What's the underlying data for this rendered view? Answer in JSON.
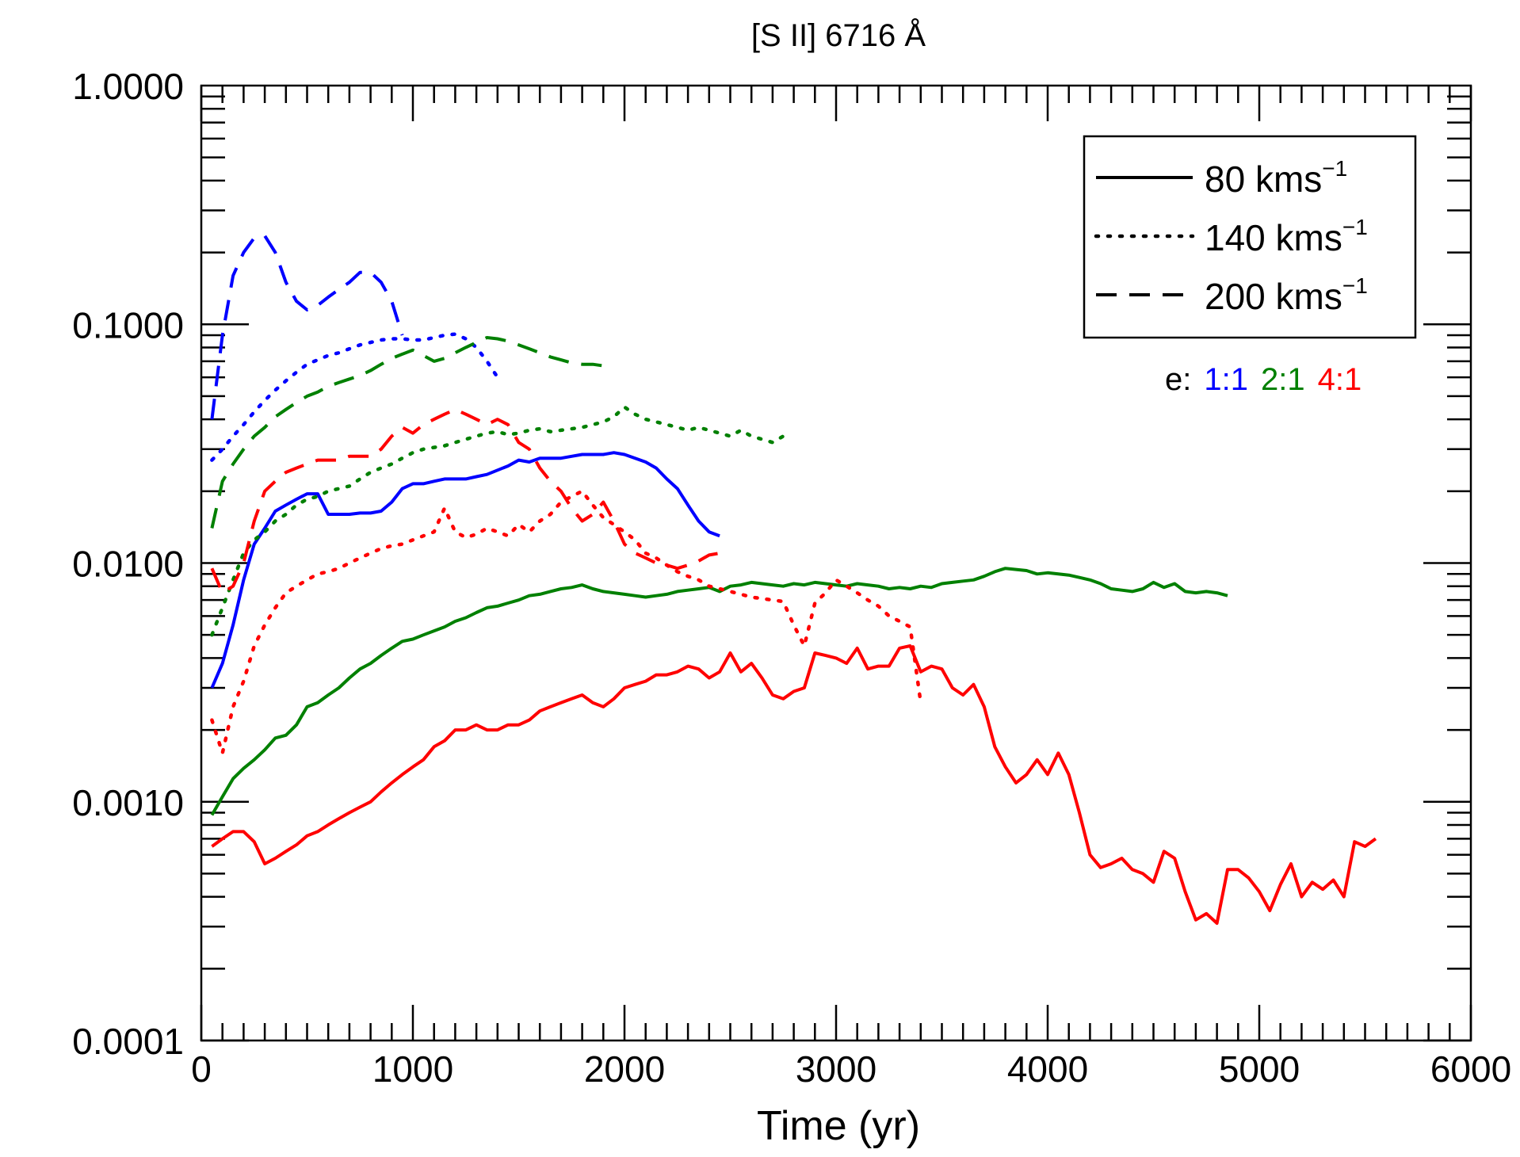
{
  "chart_data": {
    "type": "line",
    "title": "[S II] 6716 Å",
    "xlabel": "Time (yr)",
    "ylabel": "",
    "xlim": [
      0,
      6000
    ],
    "ylim": [
      0.0001,
      1.0
    ],
    "yscale": "log",
    "xticks": [
      "0",
      "1000",
      "2000",
      "3000",
      "4000",
      "5000",
      "6000"
    ],
    "yticks": [
      "0.0001",
      "0.0010",
      "0.0100",
      "0.1000",
      "1.0000"
    ],
    "legend_position": "top-right",
    "legend": [
      {
        "label": "80 kms",
        "sup": "−1",
        "dash": "solid"
      },
      {
        "label": "140 kms",
        "sup": "−1",
        "dash": "dotted"
      },
      {
        "label": "200 kms",
        "sup": "−1",
        "dash": "dashed"
      }
    ],
    "ratio_legend": {
      "prefix": "e:",
      "items": [
        {
          "label": "1:1",
          "color": "#0000ff"
        },
        {
          "label": "2:1",
          "color": "#008000"
        },
        {
          "label": "4:1",
          "color": "#ff0000"
        }
      ]
    },
    "series": [
      {
        "velocity": "80",
        "ratio": "1:1",
        "color": "#0000ff",
        "dash": "solid",
        "x": [
          50,
          100,
          150,
          200,
          250,
          300,
          350,
          400,
          450,
          500,
          550,
          600,
          650,
          700,
          750,
          800,
          850,
          900,
          950,
          1000,
          1050,
          1100,
          1150,
          1200,
          1250,
          1300,
          1350,
          1400,
          1450,
          1500,
          1550,
          1600,
          1650,
          1700,
          1750,
          1800,
          1850,
          1900,
          1950,
          2000,
          2050,
          2100,
          2150,
          2200,
          2250,
          2300,
          2350,
          2400,
          2450
        ],
        "y": [
          0.003,
          0.0038,
          0.0055,
          0.0085,
          0.012,
          0.014,
          0.0165,
          0.0175,
          0.0185,
          0.0195,
          0.0195,
          0.016,
          0.016,
          0.016,
          0.0162,
          0.0162,
          0.0165,
          0.018,
          0.0205,
          0.0215,
          0.0215,
          0.022,
          0.0225,
          0.0225,
          0.0225,
          0.023,
          0.0235,
          0.0245,
          0.0255,
          0.027,
          0.0265,
          0.0275,
          0.0275,
          0.0275,
          0.028,
          0.0285,
          0.0285,
          0.0285,
          0.029,
          0.0285,
          0.0275,
          0.0265,
          0.025,
          0.0225,
          0.0205,
          0.0175,
          0.015,
          0.0135,
          0.013
        ]
      },
      {
        "velocity": "80",
        "ratio": "2:1",
        "color": "#008000",
        "dash": "solid",
        "x": [
          50,
          100,
          150,
          200,
          250,
          300,
          350,
          400,
          450,
          500,
          550,
          600,
          650,
          700,
          750,
          800,
          850,
          900,
          950,
          1000,
          1050,
          1100,
          1150,
          1200,
          1250,
          1300,
          1350,
          1400,
          1450,
          1500,
          1550,
          1600,
          1650,
          1700,
          1750,
          1800,
          1850,
          1900,
          1950,
          2000,
          2050,
          2100,
          2150,
          2200,
          2250,
          2300,
          2350,
          2400,
          2450,
          2500,
          2550,
          2600,
          2650,
          2700,
          2750,
          2800,
          2850,
          2900,
          2950,
          3000,
          3050,
          3100,
          3150,
          3200,
          3250,
          3300,
          3350,
          3400,
          3450,
          3500,
          3550,
          3600,
          3650,
          3700,
          3750,
          3800,
          3850,
          3900,
          3950,
          4000,
          4050,
          4100,
          4150,
          4200,
          4250,
          4300,
          4350,
          4400,
          4450,
          4500,
          4550,
          4600,
          4650,
          4700,
          4750,
          4800,
          4850
        ],
        "y": [
          0.00088,
          0.00105,
          0.00125,
          0.00138,
          0.0015,
          0.00165,
          0.00185,
          0.0019,
          0.0021,
          0.0025,
          0.0026,
          0.0028,
          0.003,
          0.0033,
          0.0036,
          0.0038,
          0.0041,
          0.0044,
          0.0047,
          0.0048,
          0.005,
          0.0052,
          0.0054,
          0.0057,
          0.0059,
          0.0062,
          0.0065,
          0.0066,
          0.0068,
          0.007,
          0.0073,
          0.0074,
          0.0076,
          0.0078,
          0.0079,
          0.0081,
          0.0078,
          0.0076,
          0.0075,
          0.0074,
          0.0073,
          0.0072,
          0.0073,
          0.0074,
          0.0076,
          0.0077,
          0.0078,
          0.0079,
          0.0076,
          0.008,
          0.0081,
          0.0083,
          0.0082,
          0.0081,
          0.008,
          0.0082,
          0.0081,
          0.0083,
          0.0082,
          0.0081,
          0.008,
          0.0082,
          0.0081,
          0.008,
          0.0078,
          0.0079,
          0.0078,
          0.008,
          0.0079,
          0.0082,
          0.0083,
          0.0084,
          0.0085,
          0.0088,
          0.0092,
          0.0095,
          0.0094,
          0.0093,
          0.009,
          0.0091,
          0.009,
          0.0089,
          0.0087,
          0.0085,
          0.0082,
          0.0078,
          0.0077,
          0.0076,
          0.0078,
          0.0083,
          0.0079,
          0.0082,
          0.0076,
          0.0075,
          0.0076,
          0.0075,
          0.0073
        ]
      },
      {
        "velocity": "80",
        "ratio": "4:1",
        "color": "#ff0000",
        "dash": "solid",
        "x": [
          50,
          100,
          150,
          200,
          250,
          300,
          350,
          400,
          450,
          500,
          550,
          600,
          650,
          700,
          750,
          800,
          850,
          900,
          950,
          1000,
          1050,
          1100,
          1150,
          1200,
          1250,
          1300,
          1350,
          1400,
          1450,
          1500,
          1550,
          1600,
          1650,
          1700,
          1750,
          1800,
          1850,
          1900,
          1950,
          2000,
          2050,
          2100,
          2150,
          2200,
          2250,
          2300,
          2350,
          2400,
          2450,
          2500,
          2550,
          2600,
          2650,
          2700,
          2750,
          2800,
          2850,
          2900,
          2950,
          3000,
          3050,
          3100,
          3150,
          3200,
          3250,
          3300,
          3350,
          3400,
          3450,
          3500,
          3550,
          3600,
          3650,
          3700,
          3750,
          3800,
          3850,
          3900,
          3950,
          4000,
          4050,
          4100,
          4150,
          4200,
          4250,
          4300,
          4350,
          4400,
          4450,
          4500,
          4550,
          4600,
          4650,
          4700,
          4750,
          4800,
          4850,
          4900,
          4950,
          5000,
          5050,
          5100,
          5150,
          5200,
          5250,
          5300,
          5350,
          5400,
          5450,
          5500,
          5550
        ],
        "y": [
          0.00065,
          0.0007,
          0.00075,
          0.00075,
          0.00068,
          0.00055,
          0.00058,
          0.00062,
          0.00066,
          0.00072,
          0.00075,
          0.0008,
          0.00085,
          0.0009,
          0.00095,
          0.001,
          0.0011,
          0.0012,
          0.0013,
          0.0014,
          0.0015,
          0.0017,
          0.0018,
          0.002,
          0.002,
          0.0021,
          0.002,
          0.002,
          0.0021,
          0.0021,
          0.0022,
          0.0024,
          0.0025,
          0.0026,
          0.0027,
          0.0028,
          0.0026,
          0.0025,
          0.0027,
          0.003,
          0.0031,
          0.0032,
          0.0034,
          0.0034,
          0.0035,
          0.0037,
          0.0036,
          0.0033,
          0.0035,
          0.0042,
          0.0035,
          0.0038,
          0.0033,
          0.0028,
          0.0027,
          0.0029,
          0.003,
          0.0042,
          0.0041,
          0.004,
          0.0038,
          0.0044,
          0.0036,
          0.0037,
          0.0037,
          0.0044,
          0.0045,
          0.0035,
          0.0037,
          0.0036,
          0.003,
          0.0028,
          0.0031,
          0.0025,
          0.0017,
          0.0014,
          0.0012,
          0.0013,
          0.0015,
          0.0013,
          0.0016,
          0.0013,
          0.0009,
          0.0006,
          0.00053,
          0.00055,
          0.00058,
          0.00052,
          0.0005,
          0.00046,
          0.00062,
          0.00058,
          0.00042,
          0.00032,
          0.00034,
          0.00031,
          0.00052,
          0.00052,
          0.00048,
          0.00042,
          0.00035,
          0.00045,
          0.00055,
          0.0004,
          0.00046,
          0.00043,
          0.00047,
          0.0004,
          0.00068,
          0.00065,
          0.0007
        ]
      },
      {
        "velocity": "140",
        "ratio": "1:1",
        "color": "#0000ff",
        "dash": "dotted",
        "x": [
          50,
          100,
          150,
          200,
          250,
          300,
          350,
          400,
          450,
          500,
          550,
          600,
          650,
          700,
          750,
          800,
          850,
          900,
          950,
          1000,
          1050,
          1100,
          1150,
          1200,
          1250,
          1300,
          1350,
          1400
        ],
        "y": [
          0.027,
          0.03,
          0.034,
          0.038,
          0.043,
          0.048,
          0.053,
          0.058,
          0.063,
          0.068,
          0.071,
          0.074,
          0.076,
          0.079,
          0.082,
          0.084,
          0.086,
          0.087,
          0.087,
          0.086,
          0.086,
          0.088,
          0.09,
          0.091,
          0.087,
          0.08,
          0.07,
          0.06
        ]
      },
      {
        "velocity": "140",
        "ratio": "2:1",
        "color": "#008000",
        "dash": "dotted",
        "x": [
          50,
          100,
          150,
          200,
          250,
          300,
          350,
          400,
          450,
          500,
          550,
          600,
          650,
          700,
          750,
          800,
          850,
          900,
          950,
          1000,
          1050,
          1100,
          1150,
          1200,
          1250,
          1300,
          1350,
          1400,
          1450,
          1500,
          1550,
          1600,
          1650,
          1700,
          1750,
          1800,
          1850,
          1900,
          1950,
          2000,
          2050,
          2100,
          2150,
          2200,
          2250,
          2300,
          2350,
          2400,
          2450,
          2500,
          2550,
          2600,
          2650,
          2700,
          2750
        ],
        "y": [
          0.005,
          0.0065,
          0.0085,
          0.011,
          0.0125,
          0.0135,
          0.015,
          0.016,
          0.0175,
          0.0185,
          0.019,
          0.02,
          0.0205,
          0.021,
          0.0225,
          0.024,
          0.025,
          0.026,
          0.0275,
          0.029,
          0.03,
          0.0305,
          0.031,
          0.032,
          0.033,
          0.034,
          0.035,
          0.0355,
          0.0345,
          0.035,
          0.036,
          0.0365,
          0.0355,
          0.036,
          0.0365,
          0.037,
          0.038,
          0.039,
          0.041,
          0.045,
          0.042,
          0.04,
          0.039,
          0.038,
          0.037,
          0.036,
          0.037,
          0.036,
          0.035,
          0.034,
          0.036,
          0.034,
          0.033,
          0.032,
          0.034
        ]
      },
      {
        "velocity": "140",
        "ratio": "4:1",
        "color": "#ff0000",
        "dash": "dotted",
        "x": [
          50,
          100,
          150,
          200,
          250,
          300,
          350,
          400,
          450,
          500,
          550,
          600,
          650,
          700,
          750,
          800,
          850,
          900,
          950,
          1000,
          1050,
          1100,
          1150,
          1200,
          1250,
          1300,
          1350,
          1400,
          1450,
          1500,
          1550,
          1600,
          1650,
          1700,
          1750,
          1800,
          1850,
          1900,
          1950,
          2000,
          2050,
          2100,
          2150,
          2200,
          2250,
          2300,
          2350,
          2400,
          2450,
          2500,
          2550,
          2600,
          2650,
          2700,
          2750,
          2800,
          2850,
          2900,
          2950,
          3000,
          3050,
          3100,
          3150,
          3200,
          3250,
          3300,
          3350,
          3400
        ],
        "y": [
          0.0022,
          0.0016,
          0.0025,
          0.0032,
          0.0045,
          0.0055,
          0.0065,
          0.0075,
          0.008,
          0.0085,
          0.009,
          0.0092,
          0.0095,
          0.01,
          0.0105,
          0.011,
          0.0115,
          0.0118,
          0.012,
          0.0125,
          0.013,
          0.0135,
          0.017,
          0.0135,
          0.0128,
          0.0132,
          0.014,
          0.0135,
          0.013,
          0.0145,
          0.0135,
          0.015,
          0.016,
          0.018,
          0.019,
          0.02,
          0.0175,
          0.0155,
          0.0145,
          0.0135,
          0.0125,
          0.011,
          0.0105,
          0.0098,
          0.0092,
          0.0088,
          0.0085,
          0.008,
          0.0078,
          0.0076,
          0.0074,
          0.0072,
          0.0071,
          0.007,
          0.0069,
          0.0055,
          0.0045,
          0.0068,
          0.0075,
          0.0085,
          0.008,
          0.0075,
          0.007,
          0.0066,
          0.006,
          0.0057,
          0.0054,
          0.0026
        ]
      },
      {
        "velocity": "200",
        "ratio": "1:1",
        "color": "#0000ff",
        "dash": "dashed",
        "x": [
          50,
          100,
          150,
          200,
          250,
          300,
          350,
          400,
          450,
          500,
          550,
          600,
          650,
          700,
          750,
          800,
          850,
          900,
          950
        ],
        "y": [
          0.04,
          0.09,
          0.16,
          0.2,
          0.23,
          0.235,
          0.2,
          0.15,
          0.125,
          0.115,
          0.12,
          0.13,
          0.14,
          0.15,
          0.165,
          0.165,
          0.15,
          0.125,
          0.09
        ]
      },
      {
        "velocity": "200",
        "ratio": "2:1",
        "color": "#008000",
        "dash": "dashed",
        "x": [
          50,
          100,
          150,
          200,
          250,
          300,
          350,
          400,
          450,
          500,
          550,
          600,
          650,
          700,
          750,
          800,
          850,
          900,
          950,
          1000,
          1050,
          1100,
          1150,
          1200,
          1250,
          1300,
          1350,
          1400,
          1450,
          1500,
          1550,
          1600,
          1650,
          1700,
          1750,
          1800,
          1850,
          1900,
          1950
        ],
        "y": [
          0.014,
          0.022,
          0.026,
          0.03,
          0.034,
          0.037,
          0.041,
          0.044,
          0.047,
          0.05,
          0.052,
          0.055,
          0.057,
          0.059,
          0.061,
          0.064,
          0.068,
          0.072,
          0.075,
          0.078,
          0.074,
          0.07,
          0.072,
          0.076,
          0.08,
          0.084,
          0.088,
          0.087,
          0.085,
          0.082,
          0.079,
          0.076,
          0.073,
          0.071,
          0.069,
          0.068,
          0.068,
          0.067,
          0.066
        ]
      },
      {
        "velocity": "200",
        "ratio": "4:1",
        "color": "#ff0000",
        "dash": "dashed",
        "x": [
          50,
          100,
          150,
          200,
          250,
          300,
          350,
          400,
          450,
          500,
          550,
          600,
          650,
          700,
          750,
          800,
          850,
          900,
          950,
          1000,
          1050,
          1100,
          1150,
          1200,
          1250,
          1300,
          1350,
          1400,
          1450,
          1500,
          1550,
          1600,
          1650,
          1700,
          1750,
          1800,
          1850,
          1900,
          1950,
          2000,
          2050,
          2100,
          2150,
          2200,
          2250,
          2300,
          2350,
          2400,
          2450
        ],
        "y": [
          0.0095,
          0.0075,
          0.008,
          0.01,
          0.015,
          0.02,
          0.022,
          0.024,
          0.025,
          0.026,
          0.027,
          0.027,
          0.027,
          0.028,
          0.028,
          0.028,
          0.03,
          0.034,
          0.037,
          0.035,
          0.038,
          0.04,
          0.042,
          0.044,
          0.042,
          0.04,
          0.038,
          0.04,
          0.038,
          0.032,
          0.03,
          0.025,
          0.022,
          0.02,
          0.017,
          0.015,
          0.016,
          0.018,
          0.015,
          0.012,
          0.011,
          0.0105,
          0.01,
          0.0098,
          0.0095,
          0.0098,
          0.0102,
          0.0108,
          0.011
        ]
      }
    ]
  }
}
